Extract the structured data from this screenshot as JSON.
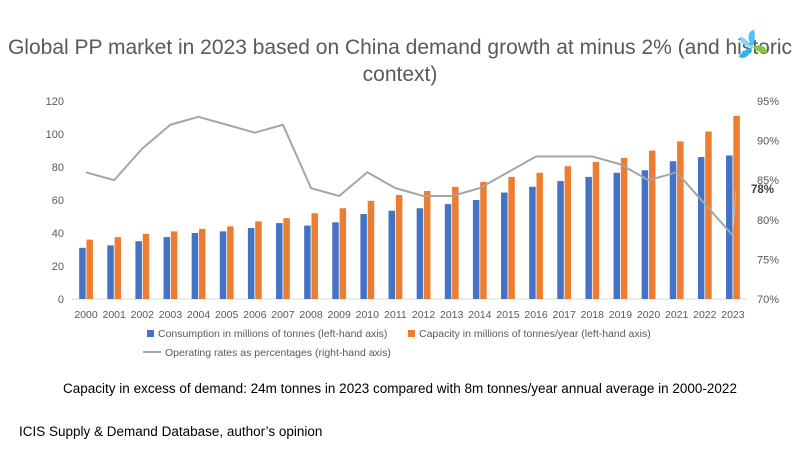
{
  "title": "Global PP market in 2023 based on China demand growth at minus 2% (and historic context)",
  "caption": "Capacity in excess of demand: 24m tonnes in 2023 compared with 8m tonnes/year annual average in 2000-2022",
  "source": "ICIS Supply & Demand Database, author’s opinion",
  "logo": {
    "icon": "pinwheel-logo-icon",
    "colors": [
      "#4fc3f7",
      "#8bc34a",
      "#29b6f6"
    ]
  },
  "chart_data": {
    "type": "bar",
    "categories": [
      "2000",
      "2001",
      "2002",
      "2003",
      "2004",
      "2005",
      "2006",
      "2007",
      "2008",
      "2009",
      "2010",
      "2011",
      "2012",
      "2013",
      "2014",
      "2015",
      "2016",
      "2017",
      "2018",
      "2019",
      "2020",
      "2021",
      "2022",
      "2023"
    ],
    "series": [
      {
        "name": "Consumption in millions of tonnes (left-hand axis)",
        "type": "bar",
        "axis": "left",
        "color": "#4472c4",
        "values": [
          31,
          32.5,
          35,
          37.5,
          40,
          41,
          43,
          46,
          44.5,
          46.5,
          51.5,
          53.5,
          55,
          57.5,
          60,
          64.5,
          68,
          71.5,
          74,
          76.5,
          78,
          83.5,
          86,
          87
        ]
      },
      {
        "name": "Capacity in millions of tonnes/year (left-hand axis)",
        "type": "bar",
        "axis": "left",
        "color": "#ed7d31",
        "values": [
          36,
          37.5,
          39.5,
          41,
          42.5,
          44,
          47,
          49,
          52,
          55,
          59.5,
          63,
          65.5,
          68,
          71,
          74,
          76.5,
          80.5,
          83,
          85.5,
          90,
          95.5,
          101.5,
          111
        ]
      },
      {
        "name": "Operating rates as percentages (right-hand axis)",
        "type": "line",
        "axis": "right",
        "color": "#a5a5a5",
        "values": [
          86,
          85,
          89,
          92,
          93,
          92,
          91,
          92,
          84,
          83,
          86,
          84,
          83,
          83,
          84,
          86,
          88,
          88,
          88,
          87,
          85,
          86,
          82,
          78
        ]
      }
    ],
    "left_axis": {
      "min": 0,
      "max": 120,
      "ticks": [
        "0",
        "20",
        "40",
        "60",
        "80",
        "100",
        "120"
      ]
    },
    "right_axis": {
      "min": 70,
      "max": 95,
      "ticks": [
        "70%",
        "75%",
        "80%",
        "85%",
        "90%",
        "95%"
      ]
    },
    "annotation": {
      "label": "78%",
      "series": 2,
      "index": 23
    },
    "grid": false,
    "legend_position": "bottom"
  }
}
